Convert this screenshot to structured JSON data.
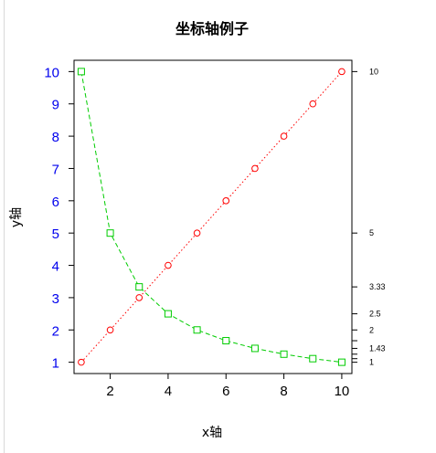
{
  "chart_data": {
    "type": "line",
    "title": "坐标轴例子",
    "xlabel": "x轴",
    "ylabel": "y轴",
    "xlim": [
      0.75,
      10.35
    ],
    "ylim": [
      0.65,
      10.35
    ],
    "grid": false,
    "x": [
      1,
      2,
      3,
      4,
      5,
      6,
      7,
      8,
      9,
      10
    ],
    "x_ticks": [
      2,
      4,
      6,
      8,
      10
    ],
    "y_ticks_left": [
      1,
      2,
      3,
      4,
      5,
      6,
      7,
      8,
      9,
      10
    ],
    "y_ticks_right": [
      {
        "value": 10,
        "label": "10"
      },
      {
        "value": 5,
        "label": "5"
      },
      {
        "value": 3.333,
        "label": "3.33"
      },
      {
        "value": 2.5,
        "label": "2.5"
      },
      {
        "value": 2,
        "label": "2"
      },
      {
        "value": 1.667,
        "label": ""
      },
      {
        "value": 1.429,
        "label": "1.43"
      },
      {
        "value": 1.25,
        "label": ""
      },
      {
        "value": 1.111,
        "label": ""
      },
      {
        "value": 1,
        "label": "1"
      }
    ],
    "series": [
      {
        "values": [
          1,
          2,
          3,
          4,
          5,
          6,
          7,
          8,
          9,
          10
        ],
        "color": "#ff0000",
        "marker": "circle",
        "line": "dotted"
      },
      {
        "values": [
          10,
          5,
          3.333,
          2.5,
          2,
          1.667,
          1.429,
          1.25,
          1.111,
          1
        ],
        "color": "#00cc00",
        "marker": "square",
        "line": "dashed"
      }
    ],
    "left_tick_color": "#0000ee"
  }
}
